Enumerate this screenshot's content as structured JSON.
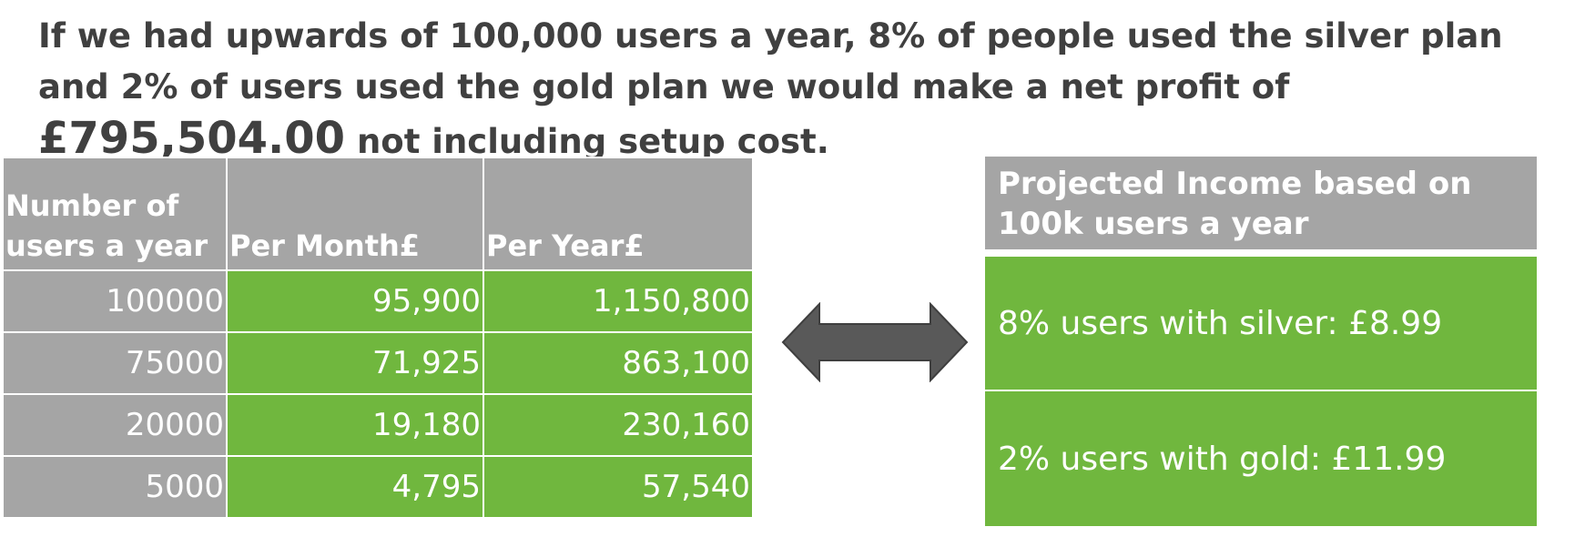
{
  "headline": {
    "part1": "If we had upwards of 100,000 users a year, 8% of people used the silver plan and 2% of users used the gold plan we would make a net profit of ",
    "profit": "£795,504.00",
    "part2": " not including setup cost."
  },
  "table": {
    "headers": [
      "Number of users a year",
      "Per Month£",
      "Per Year£"
    ],
    "rows": [
      {
        "users": "100000",
        "per_month": "95,900",
        "per_year": "1,150,800"
      },
      {
        "users": "75000",
        "per_month": "71,925",
        "per_year": "863,100"
      },
      {
        "users": "20000",
        "per_month": "19,180",
        "per_year": "230,160"
      },
      {
        "users": "5000",
        "per_month": "4,795",
        "per_year": "57,540"
      }
    ]
  },
  "arrow": {
    "icon": "double-arrow-icon",
    "color": "#595959"
  },
  "panel": {
    "title": "Projected Income based on 100k users a year",
    "silver": "8% users with silver:  £8.99",
    "gold": "2% users with gold:  £11.99"
  },
  "colors": {
    "grey": "#a5a5a5",
    "green": "#70b73e",
    "text": "#404040"
  }
}
